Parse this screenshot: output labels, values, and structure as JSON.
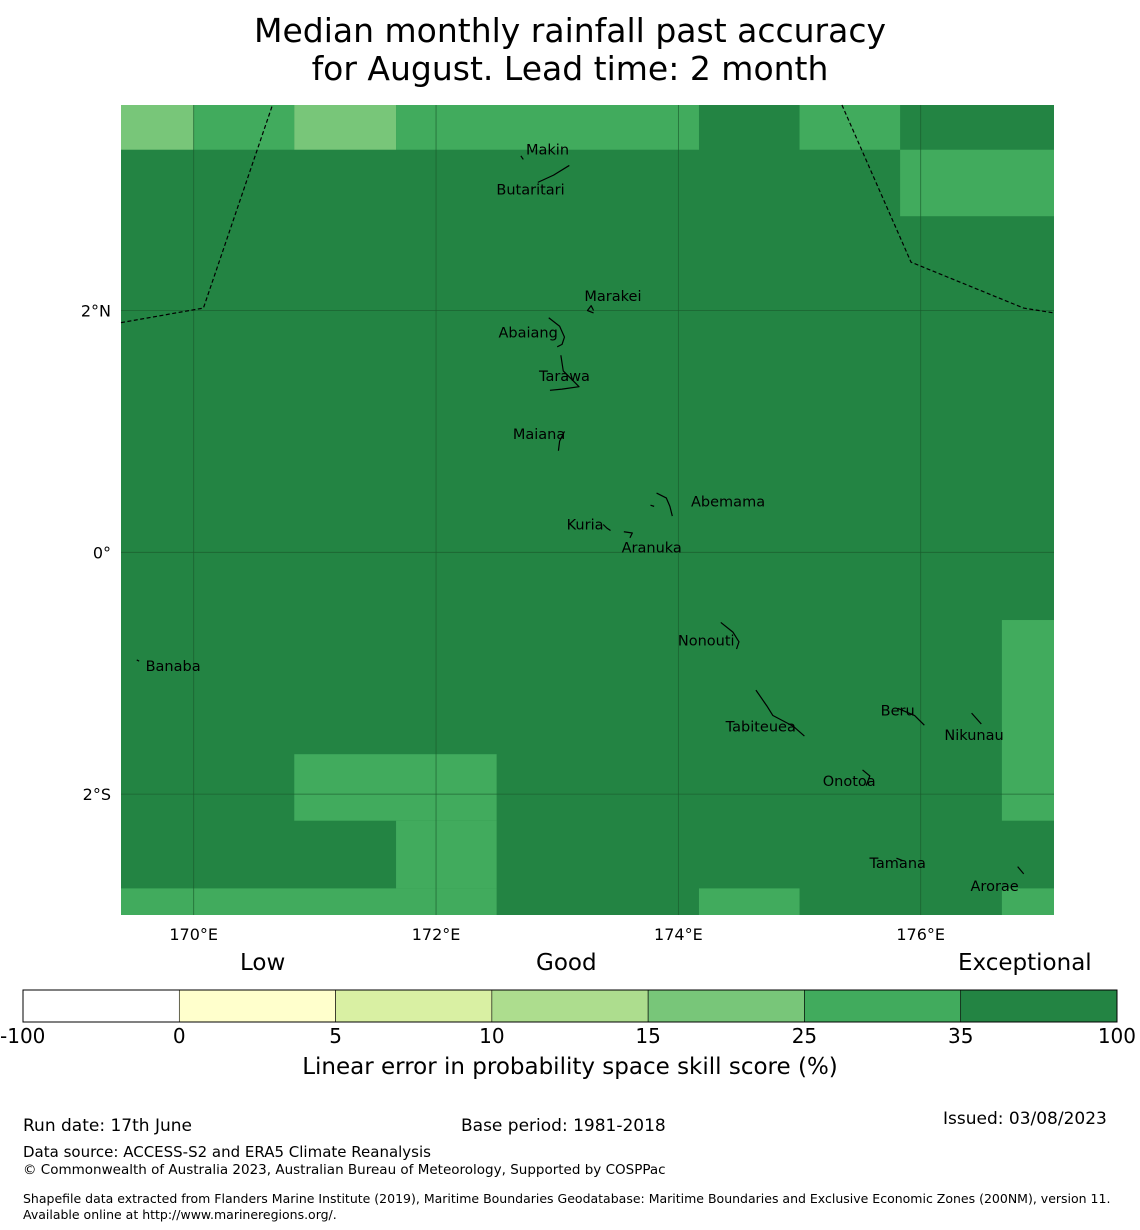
{
  "title": {
    "line1": "Median monthly rainfall past accuracy",
    "line2": "for August. Lead time: 2 month"
  },
  "map": {
    "lon_range": [
      169.4,
      177.1
    ],
    "lat_range": [
      -3.0,
      3.7
    ],
    "lon_ticks": [
      {
        "value": 170,
        "label": "170°E"
      },
      {
        "value": 172,
        "label": "172°E"
      },
      {
        "value": 174,
        "label": "174°E"
      },
      {
        "value": 176,
        "label": "176°E"
      }
    ],
    "lat_ticks": [
      {
        "value": 2,
        "label": "2°N"
      },
      {
        "value": 0,
        "label": "0°"
      },
      {
        "value": -2,
        "label": "2°S"
      }
    ],
    "background_category": "35-100",
    "skill_cells": [
      {
        "lon": [
          169.4,
          170.0
        ],
        "lat": [
          3.33,
          3.7
        ],
        "category": "15-25"
      },
      {
        "lon": [
          170.0,
          170.83
        ],
        "lat": [
          3.33,
          3.7
        ],
        "category": "25-35"
      },
      {
        "lon": [
          170.83,
          171.67
        ],
        "lat": [
          3.33,
          3.7
        ],
        "category": "15-25"
      },
      {
        "lon": [
          171.67,
          174.17
        ],
        "lat": [
          3.33,
          3.7
        ],
        "category": "25-35"
      },
      {
        "lon": [
          175.0,
          175.83
        ],
        "lat": [
          3.33,
          3.7
        ],
        "category": "25-35"
      },
      {
        "lon": [
          175.83,
          177.1
        ],
        "lat": [
          2.78,
          3.33
        ],
        "category": "25-35"
      },
      {
        "lon": [
          176.67,
          177.1
        ],
        "lat": [
          -2.22,
          -0.56
        ],
        "category": "25-35"
      },
      {
        "lon": [
          170.83,
          172.5
        ],
        "lat": [
          -2.22,
          -1.67
        ],
        "category": "25-35"
      },
      {
        "lon": [
          171.67,
          172.5
        ],
        "lat": [
          -2.78,
          -2.22
        ],
        "category": "25-35"
      },
      {
        "lon": [
          169.4,
          172.5
        ],
        "lat": [
          -3.0,
          -2.78
        ],
        "category": "25-35"
      },
      {
        "lon": [
          174.17,
          175.0
        ],
        "lat": [
          -3.0,
          -2.78
        ],
        "category": "25-35"
      },
      {
        "lon": [
          176.67,
          177.1
        ],
        "lat": [
          -3.0,
          -2.78
        ],
        "category": "25-35"
      }
    ],
    "boundaries": [
      [
        [
          169.4,
          1.9
        ],
        [
          170.08,
          2.02
        ],
        [
          170.65,
          3.7
        ]
      ],
      [
        [
          175.35,
          3.7
        ],
        [
          175.92,
          2.4
        ],
        [
          176.85,
          2.02
        ],
        [
          177.1,
          1.98
        ]
      ]
    ],
    "places": [
      {
        "name": "Makin",
        "lon": 172.92,
        "lat": 3.33
      },
      {
        "name": "Butaritari",
        "lon": 172.78,
        "lat": 3.0
      },
      {
        "name": "Marakei",
        "lon": 173.46,
        "lat": 2.12
      },
      {
        "name": "Abaiang",
        "lon": 172.76,
        "lat": 1.82
      },
      {
        "name": "Tarawa",
        "lon": 173.06,
        "lat": 1.46
      },
      {
        "name": "Maiana",
        "lon": 172.85,
        "lat": 0.98
      },
      {
        "name": "Abemama",
        "lon": 174.41,
        "lat": 0.42
      },
      {
        "name": "Kuria",
        "lon": 173.23,
        "lat": 0.23
      },
      {
        "name": "Aranuka",
        "lon": 173.78,
        "lat": 0.04
      },
      {
        "name": "Banaba",
        "lon": 169.83,
        "lat": -0.94
      },
      {
        "name": "Nonouti",
        "lon": 174.23,
        "lat": -0.73
      },
      {
        "name": "Beru",
        "lon": 175.81,
        "lat": -1.31
      },
      {
        "name": "Tabiteuea",
        "lon": 174.68,
        "lat": -1.44
      },
      {
        "name": "Nikunau",
        "lon": 176.44,
        "lat": -1.51
      },
      {
        "name": "Onotoa",
        "lon": 175.41,
        "lat": -1.89
      },
      {
        "name": "Tamana",
        "lon": 175.81,
        "lat": -2.57
      },
      {
        "name": "Arorae",
        "lon": 176.61,
        "lat": -2.76
      }
    ],
    "islands": [
      [
        [
          172.84,
          3.06
        ],
        [
          172.97,
          3.12
        ],
        [
          173.1,
          3.2
        ]
      ],
      [
        [
          172.7,
          3.28
        ],
        [
          172.72,
          3.25
        ]
      ],
      [
        [
          173.3,
          2.0
        ],
        [
          173.28,
          2.04
        ],
        [
          173.25,
          2.0
        ],
        [
          173.3,
          1.98
        ]
      ],
      [
        [
          172.93,
          1.94
        ],
        [
          173.02,
          1.87
        ],
        [
          173.06,
          1.78
        ],
        [
          173.04,
          1.72
        ],
        [
          173.0,
          1.7
        ]
      ],
      [
        [
          173.03,
          1.63
        ],
        [
          173.05,
          1.5
        ],
        [
          173.14,
          1.41
        ],
        [
          173.18,
          1.37
        ],
        [
          173.04,
          1.35
        ],
        [
          172.94,
          1.34
        ]
      ],
      [
        [
          173.06,
          1.0
        ],
        [
          173.02,
          0.92
        ],
        [
          173.01,
          0.84
        ]
      ],
      [
        [
          173.82,
          0.49
        ],
        [
          173.9,
          0.45
        ],
        [
          173.93,
          0.38
        ],
        [
          173.95,
          0.3
        ]
      ],
      [
        [
          173.77,
          0.39
        ],
        [
          173.8,
          0.38
        ]
      ],
      [
        [
          173.38,
          0.23
        ],
        [
          173.41,
          0.2
        ],
        [
          173.44,
          0.18
        ]
      ],
      [
        [
          173.55,
          0.17
        ],
        [
          173.62,
          0.16
        ],
        [
          173.6,
          0.12
        ]
      ],
      [
        [
          169.53,
          -0.89
        ],
        [
          169.55,
          -0.9
        ]
      ],
      [
        [
          174.35,
          -0.58
        ],
        [
          174.45,
          -0.66
        ],
        [
          174.5,
          -0.74
        ],
        [
          174.48,
          -0.8
        ]
      ],
      [
        [
          174.64,
          -1.14
        ],
        [
          174.73,
          -1.27
        ],
        [
          174.78,
          -1.35
        ],
        [
          174.95,
          -1.44
        ],
        [
          175.04,
          -1.52
        ]
      ],
      [
        [
          175.81,
          -1.29
        ],
        [
          175.95,
          -1.35
        ],
        [
          176.03,
          -1.43
        ]
      ],
      [
        [
          176.42,
          -1.33
        ],
        [
          176.5,
          -1.42
        ]
      ],
      [
        [
          175.52,
          -1.8
        ],
        [
          175.58,
          -1.85
        ],
        [
          175.55,
          -1.93
        ]
      ],
      [
        [
          175.8,
          -2.53
        ],
        [
          175.85,
          -2.55
        ]
      ],
      [
        [
          176.8,
          -2.6
        ],
        [
          176.85,
          -2.66
        ]
      ]
    ]
  },
  "legend": {
    "low": "Low",
    "good": "Good",
    "exceptional": "Exceptional",
    "ticks": [
      "-100",
      "0",
      "5",
      "10",
      "15",
      "25",
      "35",
      "100"
    ],
    "categories": [
      {
        "range": "-100-0",
        "color": "#ffffff"
      },
      {
        "range": "0-5",
        "color": "#ffffcc"
      },
      {
        "range": "5-10",
        "color": "#d9f0a3"
      },
      {
        "range": "10-15",
        "color": "#addd8e"
      },
      {
        "range": "15-25",
        "color": "#78c679"
      },
      {
        "range": "25-35",
        "color": "#41ab5d"
      },
      {
        "range": "35-100",
        "color": "#238443"
      }
    ],
    "axis_label": "Linear error in probability space skill score (%)"
  },
  "footer": {
    "run_date": "Run date: 17th June",
    "base_period": "Base period: 1981-2018",
    "issued": "Issued: 03/08/2023",
    "data_source": "Data source: ACCESS-S2 and ERA5 Climate Reanalysis",
    "copyright": "© Commonwealth of Australia 2023, Australian Bureau of Meteorology, Supported by COSPPac",
    "shapefile": "Shapefile data extracted from Flanders Marine Institute (2019), Maritime Boundaries Geodatabase: Maritime Boundaries and Exclusive Economic Zones (200NM), version 11. Available online at http://www.marineregions.org/."
  }
}
